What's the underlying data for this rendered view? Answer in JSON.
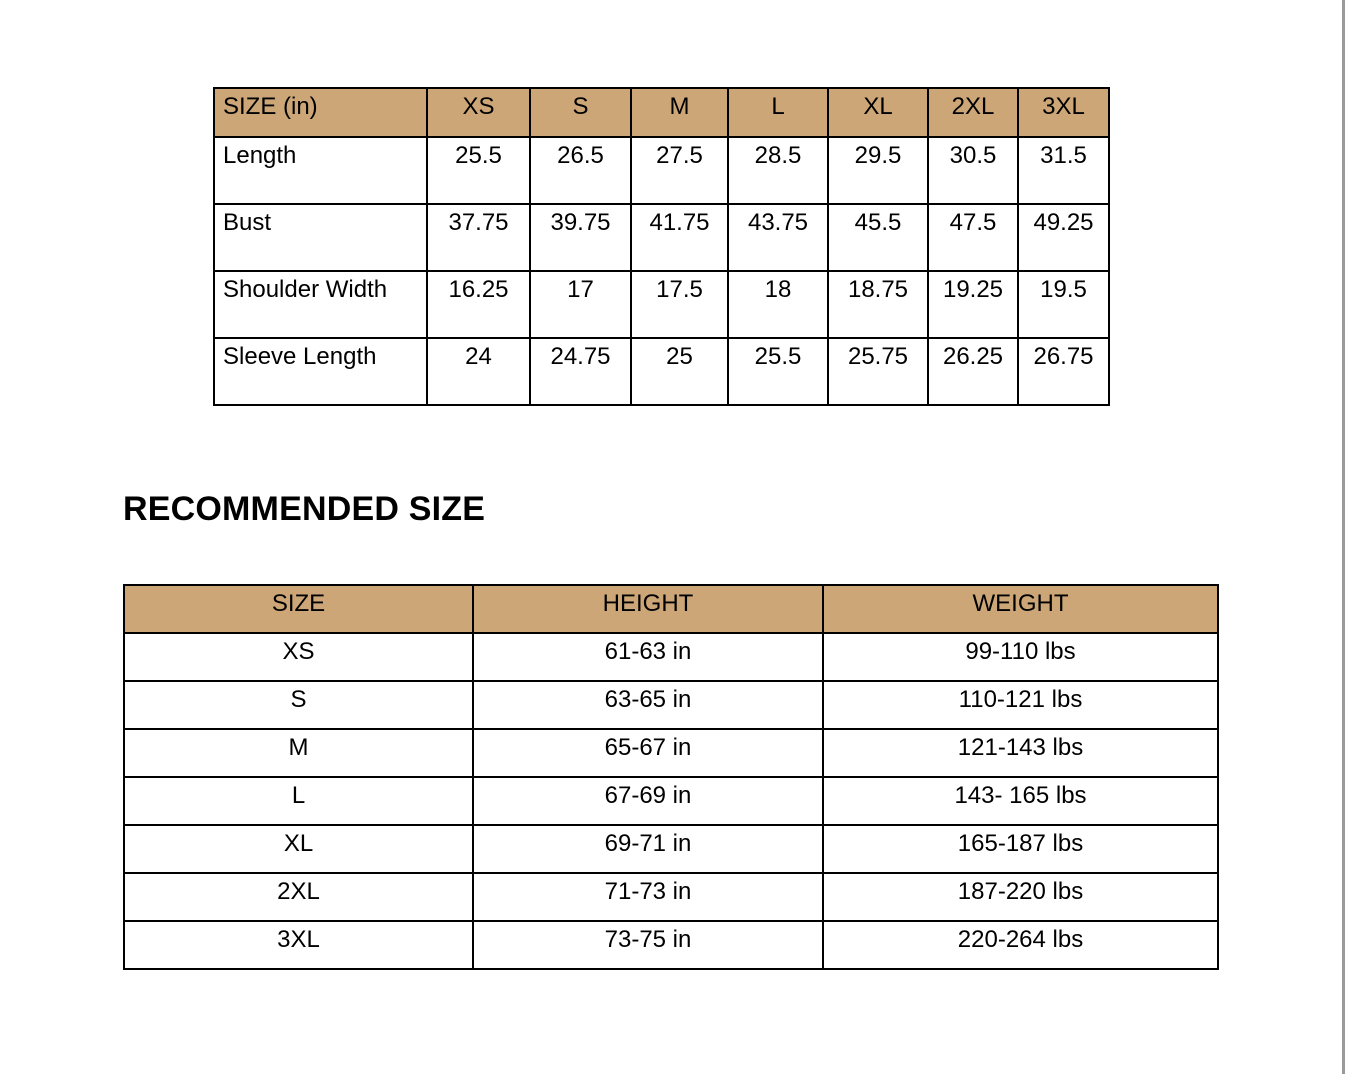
{
  "size_chart": {
    "header": [
      "SIZE (in)",
      "XS",
      "S",
      "M",
      "L",
      "XL",
      "2XL",
      "3XL"
    ],
    "rows": [
      {
        "label": "Length",
        "values": [
          "25.5",
          "26.5",
          "27.5",
          "28.5",
          "29.5",
          "30.5",
          "31.5"
        ]
      },
      {
        "label": "Bust",
        "values": [
          "37.75",
          "39.75",
          "41.75",
          "43.75",
          "45.5",
          "47.5",
          "49.25"
        ]
      },
      {
        "label": "Shoulder Width",
        "values": [
          "16.25",
          "17",
          "17.5",
          "18",
          "18.75",
          "19.25",
          "19.5"
        ]
      },
      {
        "label": "Sleeve Length",
        "values": [
          "24",
          "24.75",
          "25",
          "25.5",
          "25.75",
          "26.25",
          "26.75"
        ]
      }
    ]
  },
  "recommended": {
    "title": "RECOMMENDED SIZE",
    "header": [
      "SIZE",
      "HEIGHT",
      "WEIGHT"
    ],
    "rows": [
      [
        "XS",
        "61-63 in",
        "99-110 lbs"
      ],
      [
        "S",
        "63-65 in",
        "110-121 lbs"
      ],
      [
        "M",
        "65-67 in",
        "121-143 lbs"
      ],
      [
        "L",
        "67-69 in",
        "143- 165 lbs"
      ],
      [
        "XL",
        "69-71 in",
        "165-187 lbs"
      ],
      [
        "2XL",
        "71-73 in",
        "187-220 lbs"
      ],
      [
        "3XL",
        "73-75 in",
        "220-264 lbs"
      ]
    ]
  },
  "colors": {
    "header_fill": "#cca677",
    "border": "#000000"
  }
}
